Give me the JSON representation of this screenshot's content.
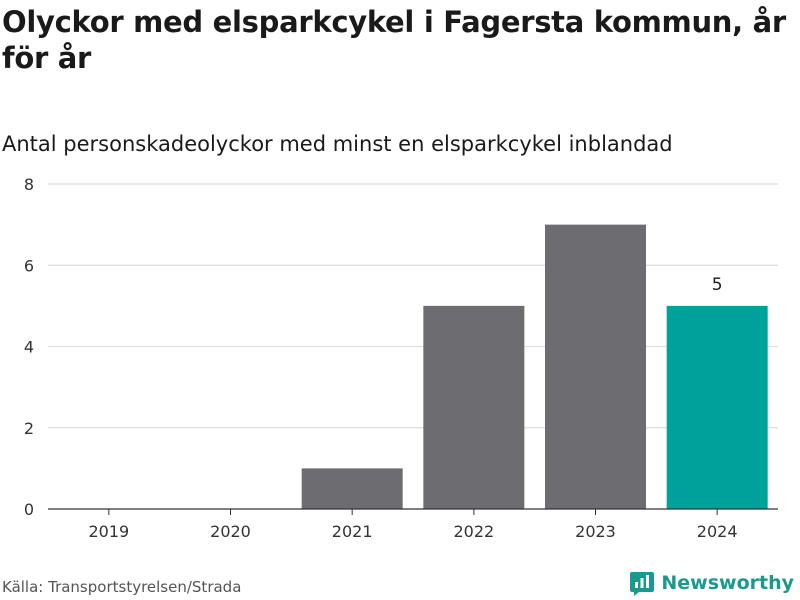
{
  "title": "Olyckor med elsparkcykel i Fagersta kommun, år för år",
  "subtitle": "Antal personskadeolyckor med minst en elsparkcykel inblandad",
  "source": "Källa: Transportstyrelsen/Strada",
  "brand": {
    "name": "Newsworthy",
    "icon": "newsworthy-logo-icon",
    "color": "#1a9a8e"
  },
  "colors": {
    "bar": "#6d6c71",
    "highlight": "#00a19a",
    "grid": "#dddddd",
    "axis": "#333333"
  },
  "chart_data": {
    "type": "bar",
    "categories": [
      "2019",
      "2020",
      "2021",
      "2022",
      "2023",
      "2024"
    ],
    "values": [
      0,
      0,
      1,
      5,
      7,
      5
    ],
    "highlight_index": 5,
    "data_labels": [
      {
        "index": 5,
        "text": "5"
      }
    ],
    "title": "Olyckor med elsparkcykel i Fagersta kommun, år för år",
    "subtitle": "Antal personskadeolyckor med minst en elsparkcykel inblandad",
    "xlabel": "",
    "ylabel": "",
    "ylim": [
      0,
      8
    ],
    "yticks": [
      0,
      2,
      4,
      6,
      8
    ],
    "grid": true,
    "legend": "none"
  }
}
